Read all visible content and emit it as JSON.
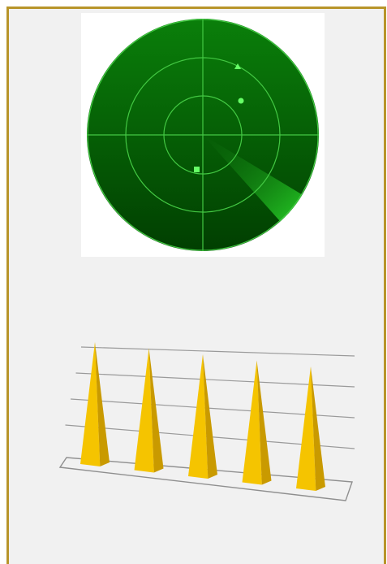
{
  "panel": {
    "border_color": "#b8952a",
    "background": "#f1f1f1"
  },
  "radar": {
    "rings": 3,
    "crosshair": true,
    "sweep_direction": "lower-right",
    "colors": {
      "scope_dark": "#013f01",
      "scope_light": "#0a7f0a",
      "grid": "#43c843",
      "sweep": "#33ff33"
    },
    "blips": [
      {
        "shape": "triangle",
        "icon": "triangle-blip-icon"
      },
      {
        "shape": "circle",
        "icon": "circle-blip-icon"
      },
      {
        "shape": "square",
        "icon": "square-blip-icon"
      }
    ]
  },
  "chart_data": {
    "type": "bar",
    "style": "3d-pyramid",
    "categories": [
      "",
      "",
      "",
      "",
      ""
    ],
    "values": [
      4,
      4,
      4,
      4,
      4
    ],
    "ylim": [
      0,
      4
    ],
    "gridlines": 4,
    "grid": true,
    "legend": "none",
    "color": "#f5c400",
    "shade_color": "#c99a00"
  }
}
